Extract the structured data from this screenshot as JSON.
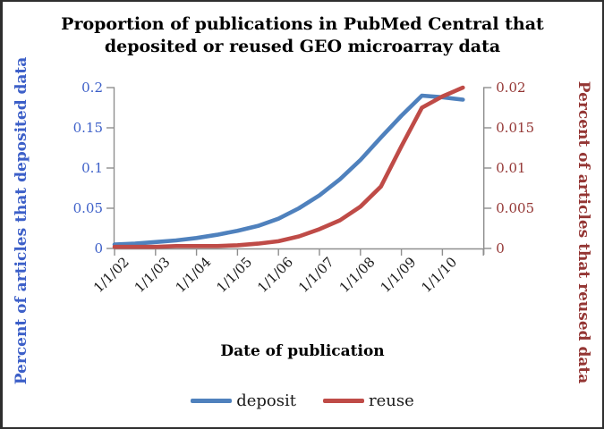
{
  "title": {
    "lines": [
      "Proportion of publications in PubMed Central that",
      "deposited or reused GEO microarray data"
    ]
  },
  "axis_titles": {
    "left": "Percent of articles that deposited data",
    "right": "Percent of articles that reused data",
    "bottom": "Date of publication"
  },
  "legend": {
    "items": [
      {
        "label": "deposit",
        "color": "#4f81bd"
      },
      {
        "label": "reuse",
        "color": "#bf4b47"
      }
    ]
  },
  "chart_data": {
    "type": "line",
    "title": "Proportion of publications in PubMed Central that deposited or reused GEO microarray data",
    "xlabel": "Date of publication",
    "ylabel_left": "Percent of articles that deposited data",
    "ylabel_right": "Percent of articles that reused data",
    "grid": false,
    "legend_position": "bottom",
    "x_tick_labels": [
      "1/1/02",
      "1/1/03",
      "1/1/04",
      "1/1/05",
      "1/1/06",
      "1/1/07",
      "1/1/08",
      "1/1/09",
      "1/1/10"
    ],
    "x_tick_label_color": "#1a1a1a",
    "axis_line_color": "#8f8f8f",
    "x": [
      2002.0,
      2002.5,
      2003.0,
      2003.5,
      2004.0,
      2004.5,
      2005.0,
      2005.5,
      2006.0,
      2006.5,
      2007.0,
      2007.5,
      2008.0,
      2008.5,
      2009.0,
      2009.5,
      2010.0,
      2010.5
    ],
    "series": [
      {
        "name": "deposit",
        "axis": "left",
        "color": "#4f81bd",
        "values": [
          0.005,
          0.006,
          0.008,
          0.01,
          0.013,
          0.017,
          0.022,
          0.028,
          0.037,
          0.05,
          0.066,
          0.086,
          0.11,
          0.138,
          0.165,
          0.19,
          0.188,
          0.185
        ]
      },
      {
        "name": "reuse",
        "axis": "right",
        "color": "#bf4b47",
        "values": [
          0.0002,
          0.0002,
          0.0002,
          0.0003,
          0.0003,
          0.0003,
          0.0004,
          0.0006,
          0.0009,
          0.0015,
          0.0024,
          0.0035,
          0.0052,
          0.0077,
          0.0127,
          0.0175,
          0.0189,
          0.02
        ]
      }
    ],
    "left_axis": {
      "range": [
        0,
        0.2
      ],
      "ticks": [
        0,
        0.05,
        0.1,
        0.15,
        0.2
      ],
      "tick_labels": [
        "0",
        "0.05",
        "0.1",
        "0.15",
        "0.2"
      ],
      "color": "#3c5fc8"
    },
    "right_axis": {
      "range": [
        0,
        0.02
      ],
      "ticks": [
        0,
        0.005,
        0.01,
        0.015,
        0.02
      ],
      "tick_labels": [
        "0",
        "0.005",
        "0.01",
        "0.015",
        "0.02"
      ],
      "color": "#943634"
    }
  }
}
